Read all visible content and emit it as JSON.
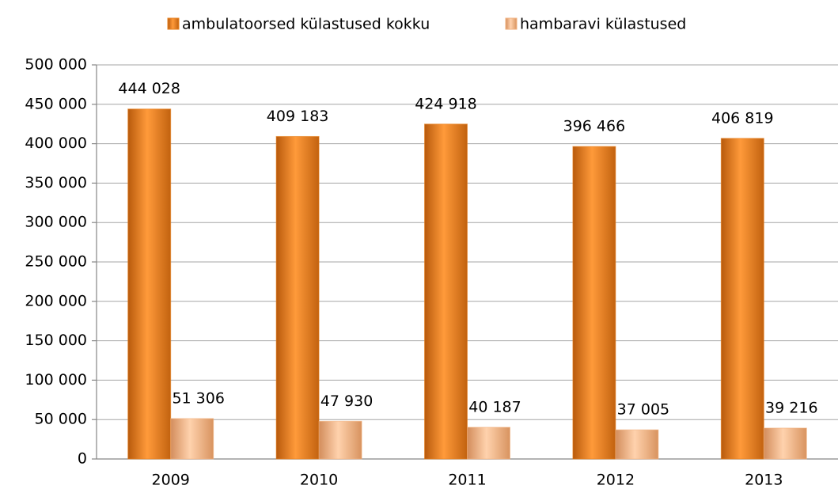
{
  "chart_data": {
    "type": "bar",
    "categories": [
      "2009",
      "2010",
      "2011",
      "2012",
      "2013"
    ],
    "series": [
      {
        "name": "ambulatoorsed külastused kokku",
        "color": "#e8801e",
        "values": [
          444028,
          409183,
          424918,
          396466,
          406819
        ],
        "value_labels": [
          "444 028",
          "409 183",
          "424 918",
          "396 466",
          "406 819"
        ]
      },
      {
        "name": "hambaravi külastused",
        "color": "#f2b27f",
        "values": [
          51306,
          47930,
          40187,
          37005,
          39216
        ],
        "value_labels": [
          "51 306",
          "47 930",
          "40 187",
          "37 005",
          "39 216"
        ]
      }
    ],
    "ylim": [
      0,
      500000
    ],
    "yticks": [
      0,
      {
        "value": 50000,
        "label": "50 000"
      },
      {
        "value": 100000,
        "label": "100 000"
      },
      {
        "value": 150000,
        "label": "150 000"
      },
      {
        "value": 200000,
        "label": "200 000"
      },
      {
        "value": 250000,
        "label": "250 000"
      },
      {
        "value": 300000,
        "label": "300 000"
      },
      {
        "value": 350000,
        "label": "350 000"
      },
      {
        "value": 400000,
        "label": "400 000"
      },
      {
        "value": 450000,
        "label": "450 000"
      },
      {
        "value": 500000,
        "label": "500 000"
      }
    ],
    "grid": true,
    "legend": "top"
  }
}
